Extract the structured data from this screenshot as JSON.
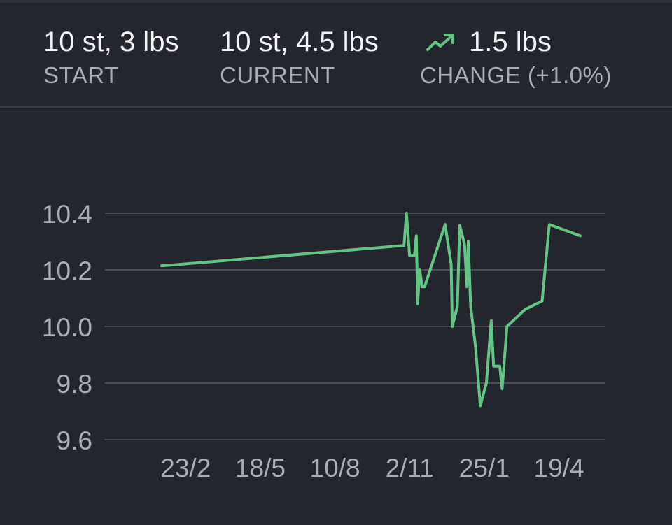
{
  "summary": {
    "start": {
      "value": "10 st, 3 lbs",
      "label": "START"
    },
    "current": {
      "value": "10 st, 4.5 lbs",
      "label": "CURRENT"
    },
    "change": {
      "value": "1.5 lbs",
      "label": "CHANGE (+1.0%)",
      "icon": "trend-up-icon"
    }
  },
  "colors": {
    "background": "#24262d",
    "line": "#63c486",
    "grid": "#4a4d55",
    "text_primary": "#f2f3f5",
    "text_secondary": "#a9acb3"
  },
  "chart_data": {
    "type": "line",
    "title": "",
    "xlabel": "",
    "ylabel": "",
    "ylim": [
      9.6,
      10.4
    ],
    "yticks": [
      "9.6",
      "9.8",
      "10.0",
      "10.2",
      "10.4"
    ],
    "xticks": [
      {
        "label": "23/2",
        "x": 0.9
      },
      {
        "label": "18/5",
        "x": 3.7
      },
      {
        "label": "10/8",
        "x": 6.5
      },
      {
        "label": "2/11",
        "x": 9.3
      },
      {
        "label": "25/1",
        "x": 12.1
      },
      {
        "label": "19/4",
        "x": 14.9
      }
    ],
    "xlim": [
      0,
      18
    ],
    "grid": true,
    "series": [
      {
        "values": [
          [
            0,
            10.214
          ],
          [
            9.09,
            10.286
          ],
          [
            9.18,
            10.4
          ],
          [
            9.3,
            10.25
          ],
          [
            9.48,
            10.25
          ],
          [
            9.55,
            10.32
          ],
          [
            9.6,
            10.08
          ],
          [
            9.68,
            10.2
          ],
          [
            9.77,
            10.14
          ],
          [
            9.86,
            10.14
          ],
          [
            10.63,
            10.36
          ],
          [
            10.86,
            10.22
          ],
          [
            10.9,
            10.0
          ],
          [
            11.09,
            10.07
          ],
          [
            11.18,
            10.357
          ],
          [
            11.36,
            10.29
          ],
          [
            11.45,
            10.14
          ],
          [
            11.5,
            10.3
          ],
          [
            11.59,
            10.07
          ],
          [
            11.77,
            9.93
          ],
          [
            11.95,
            9.72
          ],
          [
            12.18,
            9.8
          ],
          [
            12.36,
            10.02
          ],
          [
            12.45,
            9.86
          ],
          [
            12.68,
            9.86
          ],
          [
            12.77,
            9.78
          ],
          [
            12.95,
            10.0
          ],
          [
            13.63,
            10.06
          ],
          [
            14.27,
            10.09
          ],
          [
            14.54,
            10.36
          ],
          [
            15.7,
            10.32
          ]
        ]
      }
    ]
  }
}
